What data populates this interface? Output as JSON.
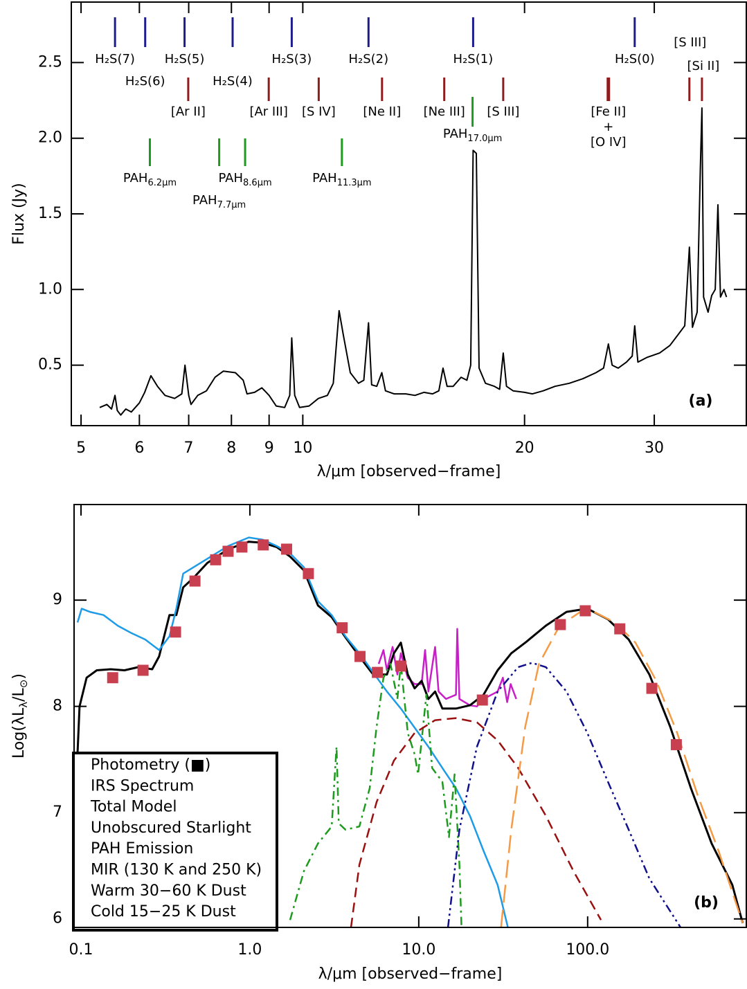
{
  "chart_data": [
    {
      "type": "line",
      "xlabel": "λ/μm [observed−frame]",
      "ylabel": "Flux (Jy)",
      "panel_label": "(a)",
      "xlog": true,
      "xlim": [
        4.85,
        40
      ],
      "ylim": [
        0.1,
        2.9
      ],
      "xticks": [
        5,
        6,
        7,
        8,
        9,
        10,
        20,
        30
      ],
      "yticks": [
        0.5,
        {
          "value": 1,
          "label": "1.0"
        },
        1.5,
        {
          "value": 2,
          "label": "2.0"
        },
        2.5
      ],
      "color": "#000000",
      "x": [
        5.3,
        5.42,
        5.5,
        5.56,
        5.6,
        5.66,
        5.75,
        5.85,
        6.0,
        6.1,
        6.22,
        6.35,
        6.5,
        6.7,
        6.85,
        6.92,
        7.0,
        7.05,
        7.2,
        7.4,
        7.6,
        7.8,
        8.1,
        8.3,
        8.4,
        8.6,
        8.8,
        9.0,
        9.2,
        9.45,
        9.6,
        9.66,
        9.75,
        9.9,
        10.2,
        10.5,
        10.8,
        11.0,
        11.2,
        11.35,
        11.6,
        11.9,
        12.1,
        12.28,
        12.4,
        12.6,
        12.8,
        12.95,
        13.3,
        13.8,
        14.2,
        14.6,
        15.0,
        15.3,
        15.5,
        15.7,
        16.0,
        16.4,
        16.7,
        16.9,
        17.03,
        17.2,
        17.35,
        17.7,
        18.2,
        18.5,
        18.71,
        18.9,
        19.3,
        20.0,
        20.5,
        21.2,
        22,
        23,
        24,
        25,
        25.6,
        25.99,
        26.3,
        26.8,
        27.5,
        28.0,
        28.22,
        28.5,
        29.3,
        30.5,
        31.5,
        32.3,
        33.0,
        33.48,
        33.8,
        34.3,
        34.65,
        34.82,
        35.0,
        35.5,
        35.9,
        36.3,
        36.6,
        36.9,
        37.3,
        37.6
      ],
      "values": [
        0.22,
        0.24,
        0.21,
        0.3,
        0.2,
        0.17,
        0.21,
        0.19,
        0.25,
        0.32,
        0.43,
        0.36,
        0.3,
        0.28,
        0.31,
        0.5,
        0.3,
        0.24,
        0.3,
        0.33,
        0.42,
        0.46,
        0.45,
        0.4,
        0.31,
        0.32,
        0.35,
        0.3,
        0.23,
        0.22,
        0.3,
        0.68,
        0.3,
        0.22,
        0.23,
        0.28,
        0.3,
        0.38,
        0.86,
        0.7,
        0.45,
        0.38,
        0.4,
        0.78,
        0.37,
        0.36,
        0.45,
        0.33,
        0.31,
        0.31,
        0.3,
        0.32,
        0.31,
        0.33,
        0.48,
        0.36,
        0.36,
        0.42,
        0.4,
        0.5,
        1.92,
        1.9,
        0.48,
        0.38,
        0.36,
        0.34,
        0.58,
        0.36,
        0.33,
        0.32,
        0.31,
        0.33,
        0.36,
        0.38,
        0.41,
        0.45,
        0.48,
        0.64,
        0.5,
        0.48,
        0.52,
        0.56,
        0.76,
        0.52,
        0.55,
        0.58,
        0.63,
        0.7,
        0.76,
        1.28,
        0.75,
        0.85,
        1.8,
        2.2,
        0.95,
        0.85,
        0.96,
        1.0,
        1.56,
        0.95,
        1.0,
        0.95
      ],
      "annotations": [
        {
          "color": "#1c1c8f",
          "lines": [
            {
              "x": 5.56,
              "label": "H₂S(7)"
            },
            {
              "x": 6.11,
              "label": "H₂S(6)"
            },
            {
              "x": 6.91,
              "label": "H₂S(5)"
            },
            {
              "x": 8.03,
              "label": "H₂S(4)"
            },
            {
              "x": 9.66,
              "label": "H₂S(3)"
            },
            {
              "x": 12.28,
              "label": "H₂S(2)"
            },
            {
              "x": 17.03,
              "label": "H₂S(1)"
            },
            {
              "x": 28.22,
              "label": "H₂S(0)"
            }
          ]
        },
        {
          "color": "#8f1c1c",
          "lines": [
            {
              "x": 6.99,
              "label": "[Ar II]"
            },
            {
              "x": 8.99,
              "label": "[Ar III]"
            },
            {
              "x": 10.51,
              "label": "[S IV]"
            },
            {
              "x": 12.81,
              "label": "[Ne II]"
            },
            {
              "x": 15.56,
              "label": "[Ne III]"
            },
            {
              "x": 18.71,
              "label": "[S III]"
            },
            {
              "x": 25.99,
              "label": [
                "[Fe II]",
                "+",
                "[O IV]"
              ]
            },
            {
              "x": 33.48,
              "label": "[S III]"
            },
            {
              "x": 34.82,
              "label": "[Si II]"
            }
          ]
        },
        {
          "color": "#1e9a1e",
          "lines": [
            {
              "x": 6.2,
              "label": "PAH",
              "sub": "6.2μm"
            },
            {
              "x": 7.7,
              "label": "PAH",
              "sub": "7.7μm"
            },
            {
              "x": 8.35,
              "label": "PAH",
              "sub": "8.6μm"
            },
            {
              "x": 11.3,
              "label": "PAH",
              "sub": "11.3μm"
            },
            {
              "x": 17.0,
              "label": "PAH",
              "sub": "17.0μm"
            }
          ]
        }
      ]
    },
    {
      "type": "line",
      "xlabel": "λ/μm [observed−frame]",
      "ylabel": [
        "Log(λL",
        "λ",
        "/L",
        "⊙",
        ")"
      ],
      "panel_label": "(b)",
      "xlog": true,
      "xlim": [
        0.091,
        870
      ],
      "ylim": [
        5.92,
        9.9
      ],
      "xticks": [
        0.1,
        {
          "value": 1,
          "label": "1.0"
        },
        {
          "value": 10,
          "label": "10.0"
        },
        {
          "value": 100,
          "label": "100.0"
        }
      ],
      "yticks": [
        6,
        7,
        8,
        9
      ],
      "legend": "lower left",
      "series": [
        {
          "name": "Photometry (■)",
          "color": "#c8404f",
          "marker": "square",
          "x": [
            0.154,
            0.233,
            0.363,
            0.473,
            0.627,
            0.743,
            0.897,
            1.2,
            1.65,
            2.22,
            3.52,
            4.49,
            5.69,
            7.83,
            23.8,
            68.9,
            96.8,
            155,
            240,
            335
          ],
          "values": [
            8.27,
            8.34,
            8.7,
            9.18,
            9.38,
            9.46,
            9.5,
            9.52,
            9.48,
            9.25,
            8.74,
            8.47,
            8.32,
            8.38,
            8.06,
            8.77,
            8.9,
            8.73,
            8.17,
            7.64
          ]
        },
        {
          "name": "IRS Spectrum",
          "color": "#c81ec8",
          "dash": "solid",
          "x": [
            5.79,
            6.18,
            6.48,
            7.0,
            7.47,
            7.83,
            8.61,
            9.45,
            10.4,
            10.9,
            11.4,
            12.5,
            13.1,
            14.5,
            16.6,
            16.9,
            17.4,
            20.1,
            22.1,
            24.2,
            29.3,
            31.5,
            33.4,
            35.0,
            37.8
          ],
          "values": [
            8.4,
            8.53,
            8.34,
            8.56,
            8.3,
            8.5,
            8.27,
            8.21,
            8.21,
            8.53,
            8.14,
            8.56,
            8.14,
            8.07,
            8.11,
            8.73,
            8.07,
            8.01,
            8.0,
            8.07,
            8.14,
            8.27,
            8.04,
            8.21,
            8.07
          ]
        },
        {
          "name": "Total Model",
          "color": "#000000",
          "dash": "solid",
          "x": [
            0.091,
            0.098,
            0.108,
            0.124,
            0.15,
            0.181,
            0.219,
            0.264,
            0.29,
            0.334,
            0.367,
            0.403,
            0.464,
            0.56,
            0.743,
            0.986,
            1.19,
            1.44,
            1.73,
            2.09,
            2.53,
            3.05,
            3.68,
            4.45,
            5.37,
            6.48,
            7.13,
            7.83,
            8.61,
            9.45,
            10.4,
            11.4,
            12.5,
            13.8,
            16.6,
            20.1,
            24.2,
            29.3,
            35.3,
            42.7,
            56.6,
            75.0,
            99.6,
            132,
            175,
            232,
            308,
            409,
            542,
            719,
            828
          ],
          "values": [
            6.8,
            8.0,
            8.27,
            8.34,
            8.35,
            8.34,
            8.37,
            8.35,
            8.47,
            8.86,
            8.86,
            9.12,
            9.21,
            9.35,
            9.48,
            9.55,
            9.54,
            9.5,
            9.41,
            9.28,
            8.95,
            8.84,
            8.65,
            8.47,
            8.3,
            8.3,
            8.5,
            8.6,
            8.3,
            8.17,
            8.24,
            8.07,
            8.14,
            7.98,
            7.98,
            8.01,
            8.11,
            8.34,
            8.5,
            8.6,
            8.76,
            8.89,
            8.92,
            8.82,
            8.63,
            8.3,
            7.81,
            7.23,
            6.71,
            6.32,
            5.96
          ]
        },
        {
          "name": "Unobscured Starlight",
          "color": "#1e9be6",
          "dash": "solid",
          "x": [
            0.0954,
            0.101,
            0.113,
            0.136,
            0.165,
            0.199,
            0.24,
            0.29,
            0.334,
            0.367,
            0.403,
            0.464,
            0.56,
            0.743,
            0.986,
            1.19,
            1.44,
            1.73,
            2.09,
            2.53,
            3.05,
            3.68,
            4.45,
            5.37,
            6.48,
            7.83,
            9.45,
            11.4,
            13.8,
            16.6,
            20.1,
            24.2,
            29.3,
            33.7
          ],
          "values": [
            8.79,
            8.92,
            8.89,
            8.86,
            8.76,
            8.69,
            8.63,
            8.53,
            8.66,
            8.92,
            9.25,
            9.31,
            9.39,
            9.51,
            9.59,
            9.57,
            9.51,
            9.44,
            9.31,
            8.99,
            8.86,
            8.66,
            8.5,
            8.32,
            8.14,
            7.98,
            7.8,
            7.62,
            7.42,
            7.23,
            6.97,
            6.64,
            6.32,
            5.92
          ]
        },
        {
          "name": "PAH Emission",
          "color": "#1e9a1e",
          "dash": "dash-dot",
          "x": [
            1.73,
            2.09,
            2.53,
            3.05,
            3.26,
            3.36,
            3.68,
            4.45,
            5.12,
            5.63,
            6.18,
            6.8,
            7.47,
            7.83,
            8.61,
            9.45,
            9.91,
            11.1,
            12.0,
            13.8,
            15.1,
            16.3,
            17.4,
            17.9
          ],
          "values": [
            5.99,
            6.45,
            6.71,
            6.87,
            7.62,
            6.9,
            6.84,
            6.87,
            7.23,
            7.81,
            8.27,
            8.4,
            8.07,
            8.4,
            7.75,
            7.55,
            7.36,
            8.11,
            7.42,
            7.29,
            6.77,
            7.36,
            6.51,
            5.92
          ]
        },
        {
          "name": "MIR (130 K and 250 K)",
          "color": "#9a1010",
          "dash": "dashed",
          "x": [
            3.97,
            4.45,
            5.63,
            7.13,
            9.45,
            12.5,
            16.6,
            22.1,
            29.3,
            38.8,
            56.6,
            82.4,
            120
          ],
          "values": [
            5.92,
            6.51,
            7.1,
            7.49,
            7.75,
            7.87,
            7.89,
            7.85,
            7.68,
            7.42,
            6.97,
            6.45,
            5.99
          ]
        },
        {
          "name": "Warm 30−60 K Dust",
          "color": "#10108c",
          "dash": "dash-dot-dot",
          "x": [
            14.9,
            17.4,
            22.1,
            29.3,
            38.8,
            46.9,
            56.6,
            75.0,
            99.6,
            132,
            175,
            232,
            355
          ],
          "values": [
            5.92,
            6.84,
            7.62,
            8.14,
            8.37,
            8.41,
            8.37,
            8.14,
            7.75,
            7.29,
            6.84,
            6.38,
            5.92
          ]
        },
        {
          "name": "Cold 15−25 K Dust",
          "color": "#f59a45",
          "dash": "long-dash",
          "x": [
            30.7,
            35.3,
            42.7,
            51.5,
            68.3,
            90.6,
            109,
            145,
            192,
            255,
            339,
            449,
            596,
            828
          ],
          "values": [
            5.92,
            6.84,
            7.81,
            8.4,
            8.76,
            8.89,
            8.89,
            8.79,
            8.6,
            8.24,
            7.75,
            7.16,
            6.64,
            5.96
          ]
        }
      ]
    }
  ]
}
